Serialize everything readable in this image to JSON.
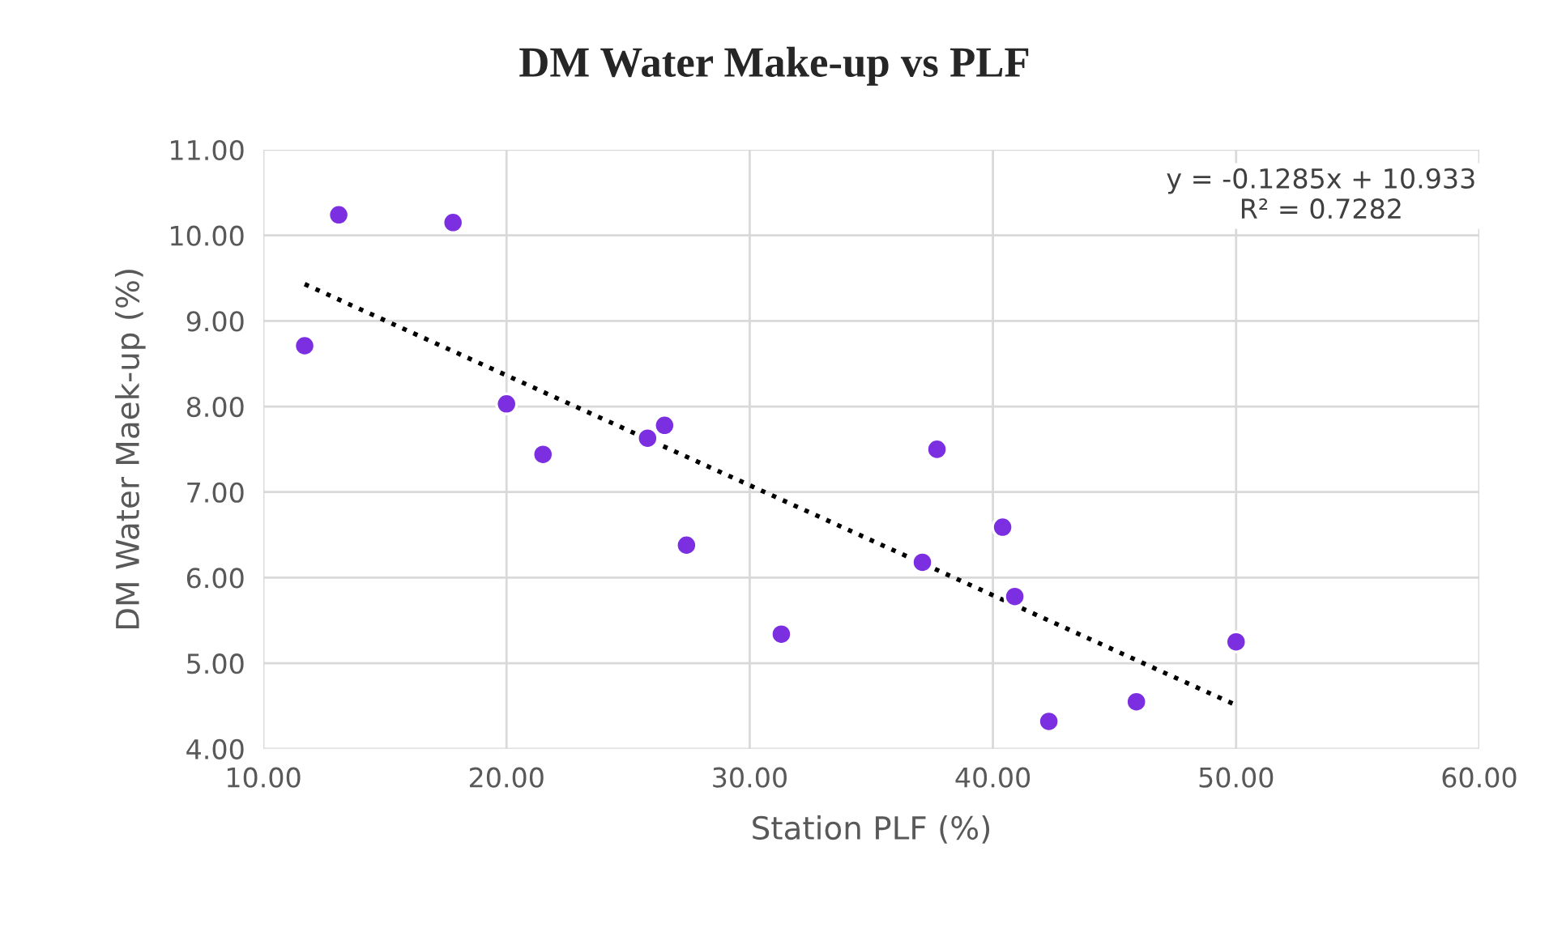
{
  "chart_data": {
    "type": "scatter",
    "title": "DM Water Make-up vs PLF",
    "xlabel": "Station PLF (%)",
    "ylabel": "DM Water Maek-up (%)",
    "xlim": [
      10,
      60
    ],
    "ylim": [
      4,
      11
    ],
    "xticks": [
      {
        "value": 10,
        "label": "10.00"
      },
      {
        "value": 20,
        "label": "20.00"
      },
      {
        "value": 30,
        "label": "30.00"
      },
      {
        "value": 40,
        "label": "40.00"
      },
      {
        "value": 50,
        "label": "50.00"
      },
      {
        "value": 60,
        "label": "60.00"
      }
    ],
    "yticks": [
      {
        "value": 4,
        "label": "4.00"
      },
      {
        "value": 5,
        "label": "5.00"
      },
      {
        "value": 6,
        "label": "6.00"
      },
      {
        "value": 7,
        "label": "7.00"
      },
      {
        "value": 8,
        "label": "8.00"
      },
      {
        "value": 9,
        "label": "9.00"
      },
      {
        "value": 10,
        "label": "10.00"
      },
      {
        "value": 11,
        "label": "11.00"
      }
    ],
    "grid": true,
    "marker": "circle",
    "series": [
      {
        "color": "#7b2fe0",
        "x": [
          11.7,
          13.1,
          17.8,
          20.0,
          21.5,
          25.8,
          26.5,
          27.4,
          31.3,
          37.1,
          37.7,
          40.4,
          40.9,
          42.3,
          45.9,
          50.0
        ],
        "values": [
          8.71,
          10.24,
          10.15,
          8.03,
          7.44,
          7.63,
          7.78,
          6.38,
          5.34,
          6.18,
          7.5,
          6.59,
          5.78,
          4.32,
          4.55,
          5.25
        ]
      },
      {
        "type": "line",
        "color": "#000000",
        "line_style": "dotted",
        "marker": "none",
        "x": [
          11.7,
          50.0
        ],
        "values": [
          9.43,
          4.51
        ]
      }
    ],
    "annotations": [
      "y = -0.1285x + 10.933\nR² = 0.7282"
    ]
  }
}
